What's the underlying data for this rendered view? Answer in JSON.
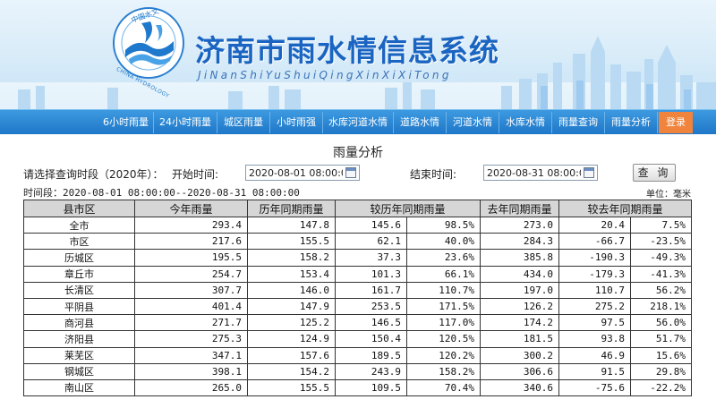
{
  "header": {
    "title": "济南市雨水情信息系统",
    "subtitle": "JiNanShiYuShuiQingXinXiXiTong",
    "logo_text_top": "中国水文",
    "logo_text_bottom": "CHINA HYDROLOGY"
  },
  "nav": {
    "items": [
      "6小时雨量",
      "24小时雨量",
      "城区雨量",
      "小时雨强",
      "水库河道水情",
      "道路水情",
      "河道水情",
      "水库水情",
      "雨量查询",
      "雨量分析"
    ],
    "login": "登录",
    "login_color": "#f0843c"
  },
  "page": {
    "heading": "雨量分析",
    "query_label": "请选择查询时段（2020年）：",
    "start_label": "开始时间:",
    "start_value": "2020-08-01 08:00:00",
    "end_label": "结束时间:",
    "end_value": "2020-08-31 08:00:00",
    "query_button": "查 询",
    "range_label": "时间段：",
    "range_value": "2020-08-01 08:00:00--2020-08-31 08:00:00",
    "unit": "单位：毫米"
  },
  "table": {
    "headers": [
      "县市区",
      "今年雨量",
      "历年同期雨量",
      "较历年同期雨量",
      "去年同期雨量",
      "较去年同期雨量"
    ],
    "rows": [
      [
        "全市",
        "293.4",
        "147.8",
        "145.6",
        "98.5%",
        "273.0",
        "20.4",
        "7.5%"
      ],
      [
        "市区",
        "217.6",
        "155.5",
        "62.1",
        "40.0%",
        "284.3",
        "-66.7",
        "-23.5%"
      ],
      [
        "历城区",
        "195.5",
        "158.2",
        "37.3",
        "23.6%",
        "385.8",
        "-190.3",
        "-49.3%"
      ],
      [
        "章丘市",
        "254.7",
        "153.4",
        "101.3",
        "66.1%",
        "434.0",
        "-179.3",
        "-41.3%"
      ],
      [
        "长清区",
        "307.7",
        "146.0",
        "161.7",
        "110.7%",
        "197.0",
        "110.7",
        "56.2%"
      ],
      [
        "平阴县",
        "401.4",
        "147.9",
        "253.5",
        "171.5%",
        "126.2",
        "275.2",
        "218.1%"
      ],
      [
        "商河县",
        "271.7",
        "125.2",
        "146.5",
        "117.0%",
        "174.2",
        "97.5",
        "56.0%"
      ],
      [
        "济阳县",
        "275.3",
        "124.9",
        "150.4",
        "120.5%",
        "181.5",
        "93.8",
        "51.7%"
      ],
      [
        "莱芜区",
        "347.1",
        "157.6",
        "189.5",
        "120.2%",
        "300.2",
        "46.9",
        "15.6%"
      ],
      [
        "钢城区",
        "398.1",
        "154.2",
        "243.9",
        "158.2%",
        "306.6",
        "91.5",
        "29.8%"
      ],
      [
        "南山区",
        "265.0",
        "155.5",
        "109.5",
        "70.4%",
        "340.6",
        "-75.6",
        "-22.2%"
      ]
    ]
  }
}
